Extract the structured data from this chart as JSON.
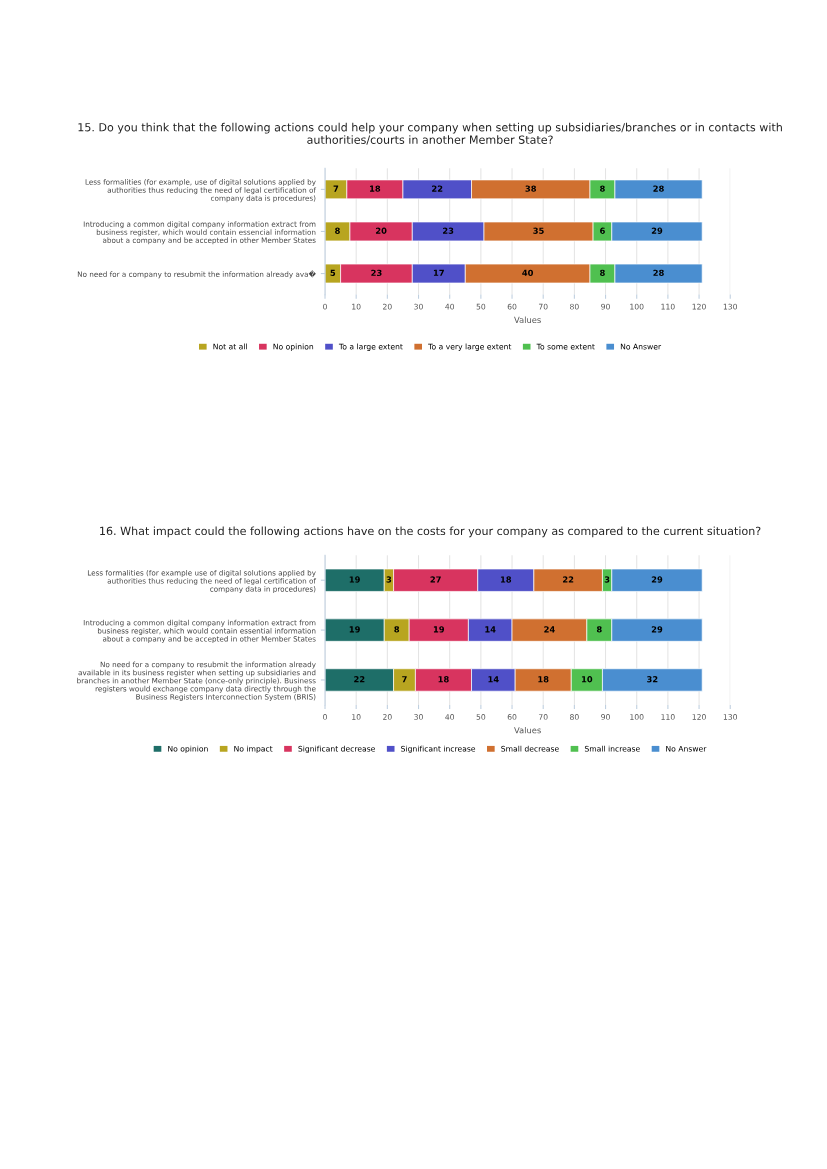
{
  "chart_data": [
    {
      "type": "bar",
      "orientation": "horizontal",
      "stacked": true,
      "title": "15. Do you think that the following actions could help your company when setting up subsidiaries/branches or in contacts with authorities/courts in another Member State?",
      "xlabel": "Values",
      "categories": [
        "Less formalities (for example, use of digital solutions applied by\nauthorities thus reducing the need of legal certification of\ncompany data is procedures)",
        "Introducing a common digital company information extract from\nbusiness register, which would contain essencial information\nabout a company and be accepted in other Member States",
        "No need for a company to resubmit the information already ava�"
      ],
      "series": [
        {
          "name": "Not at all",
          "color": "#b8a520",
          "values": [
            7,
            8,
            5
          ]
        },
        {
          "name": "No opinion",
          "color": "#d8345f",
          "values": [
            18,
            20,
            23
          ]
        },
        {
          "name": "To a large extent",
          "color": "#5050c8",
          "values": [
            22,
            23,
            17
          ]
        },
        {
          "name": "To a very large extent",
          "color": "#d07030",
          "values": [
            38,
            35,
            40
          ]
        },
        {
          "name": "To some extent",
          "color": "#50c050",
          "values": [
            8,
            6,
            8
          ]
        },
        {
          "name": "No Answer",
          "color": "#4a8ed0",
          "values": [
            28,
            29,
            28
          ]
        }
      ],
      "xlim": [
        0,
        130
      ],
      "xticks": [
        0,
        10,
        20,
        30,
        40,
        50,
        60,
        70,
        80,
        90,
        100,
        110,
        120,
        130
      ],
      "grid": "x",
      "legend": "bottom",
      "data_labels": true
    },
    {
      "type": "bar",
      "orientation": "horizontal",
      "stacked": true,
      "title": "16. What impact could the following actions have on the costs for your company as compared to the current situation?",
      "xlabel": "Values",
      "categories": [
        "Less formalities (for example use of digital solutions applied by\nauthorities thus reducing the need of legal certification of\ncompany data in procedures)",
        "Introducing a common digital company information extract from\nbusiness register, which would contain essential information\nabout a company and be accepted in other Member States",
        "No need for a company to resubmit the information already\navailable in its business register when setting up subsidiaries and\nbranches in another Member State (once-only principle). Business\nregisters would exchange company data directly through the\nBusiness Registers Interconnection System (BRIS)"
      ],
      "series": [
        {
          "name": "No opinion",
          "color": "#1e6e68",
          "values": [
            19,
            19,
            22
          ]
        },
        {
          "name": "No impact",
          "color": "#b8a520",
          "values": [
            3,
            8,
            7
          ]
        },
        {
          "name": "Significant decrease",
          "color": "#d8345f",
          "values": [
            27,
            19,
            18
          ]
        },
        {
          "name": "Significant increase",
          "color": "#5050c8",
          "values": [
            18,
            14,
            14
          ]
        },
        {
          "name": "Small decrease",
          "color": "#d07030",
          "values": [
            22,
            24,
            18
          ]
        },
        {
          "name": "Small increase",
          "color": "#50c050",
          "values": [
            3,
            8,
            10
          ]
        },
        {
          "name": "No Answer",
          "color": "#4a8ed0",
          "values": [
            29,
            29,
            32
          ]
        }
      ],
      "xlim": [
        0,
        130
      ],
      "xticks": [
        0,
        10,
        20,
        30,
        40,
        50,
        60,
        70,
        80,
        90,
        100,
        110,
        120,
        130
      ],
      "grid": "x",
      "legend": "bottom",
      "data_labels": true
    }
  ]
}
